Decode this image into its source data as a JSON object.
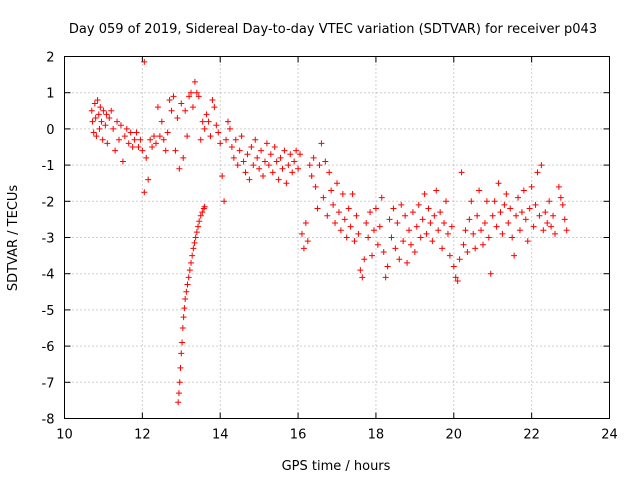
{
  "chart_data": {
    "type": "scatter",
    "title": "Day 059 of 2019, Sidereal Day-to-day VTEC variation (SDTVAR) for receiver p043",
    "xlabel": "GPS time / hours",
    "ylabel": "SDTVAR / TECUs",
    "xlim": [
      10,
      24
    ],
    "ylim": [
      -8,
      2
    ],
    "xticks": [
      "10",
      "12",
      "14",
      "16",
      "18",
      "20",
      "22",
      "24"
    ],
    "yticks": [
      "2",
      "1",
      "0",
      "-1",
      "-2",
      "-3",
      "-4",
      "-5",
      "-6",
      "-7",
      "-8"
    ],
    "grid": true,
    "marker": "plus",
    "color": "#ff0000",
    "series": [
      {
        "name": "SDTVAR",
        "points": [
          [
            10.7,
            0.5
          ],
          [
            10.72,
            0.2
          ],
          [
            10.75,
            -0.1
          ],
          [
            10.78,
            0.7
          ],
          [
            10.8,
            0.3
          ],
          [
            10.82,
            -0.2
          ],
          [
            10.85,
            0.8
          ],
          [
            10.88,
            0.4
          ],
          [
            10.9,
            0.0
          ],
          [
            10.92,
            0.6
          ],
          [
            10.95,
            0.2
          ],
          [
            10.98,
            -0.3
          ],
          [
            11.0,
            0.5
          ],
          [
            11.05,
            0.1
          ],
          [
            11.08,
            0.4
          ],
          [
            11.1,
            -0.4
          ],
          [
            11.15,
            0.3
          ],
          [
            11.2,
            0.5
          ],
          [
            11.25,
            0.0
          ],
          [
            11.3,
            -0.6
          ],
          [
            11.35,
            0.2
          ],
          [
            11.4,
            -0.3
          ],
          [
            11.45,
            0.1
          ],
          [
            11.5,
            -0.9
          ],
          [
            11.55,
            -0.2
          ],
          [
            11.6,
            0.0
          ],
          [
            11.65,
            -0.4
          ],
          [
            11.7,
            -0.1
          ],
          [
            11.75,
            -0.5
          ],
          [
            11.8,
            -0.3
          ],
          [
            11.85,
            -0.1
          ],
          [
            11.9,
            -0.5
          ],
          [
            11.95,
            -0.3
          ],
          [
            12.0,
            -0.6
          ],
          [
            12.05,
            1.85
          ],
          [
            12.05,
            -1.75
          ],
          [
            12.1,
            -0.8
          ],
          [
            12.15,
            -1.4
          ],
          [
            12.2,
            -0.3
          ],
          [
            12.25,
            -0.5
          ],
          [
            12.3,
            -0.2
          ],
          [
            12.35,
            -0.4
          ],
          [
            12.4,
            0.6
          ],
          [
            12.45,
            -0.2
          ],
          [
            12.5,
            0.2
          ],
          [
            12.55,
            -0.3
          ],
          [
            12.6,
            -0.6
          ],
          [
            12.65,
            -0.1
          ],
          [
            12.7,
            0.8
          ],
          [
            12.75,
            0.5
          ],
          [
            12.8,
            0.9
          ],
          [
            12.85,
            -0.6
          ],
          [
            12.9,
            0.3
          ],
          [
            12.95,
            -1.1
          ],
          [
            13.0,
            0.7
          ],
          [
            13.05,
            -0.8
          ],
          [
            13.1,
            0.5
          ],
          [
            13.15,
            -0.2
          ],
          [
            13.2,
            0.9
          ],
          [
            13.25,
            1.0
          ],
          [
            13.3,
            0.6
          ],
          [
            13.35,
            1.3
          ],
          [
            13.4,
            1.0
          ],
          [
            13.45,
            0.9
          ],
          [
            13.5,
            -0.3
          ],
          [
            13.55,
            0.2
          ],
          [
            13.6,
            0.0
          ],
          [
            13.65,
            0.4
          ],
          [
            13.7,
            0.2
          ],
          [
            13.75,
            -0.2
          ],
          [
            13.8,
            0.8
          ],
          [
            13.85,
            0.6
          ],
          [
            13.9,
            0.1
          ],
          [
            13.95,
            -0.1
          ],
          [
            14.0,
            -0.4
          ],
          [
            14.05,
            -1.3
          ],
          [
            14.1,
            -2.0
          ],
          [
            14.15,
            -0.3
          ],
          [
            14.2,
            0.2
          ],
          [
            14.25,
            0.0
          ],
          [
            14.3,
            -0.5
          ],
          [
            14.35,
            -0.8
          ],
          [
            14.4,
            -0.3
          ],
          [
            14.45,
            -1.0
          ],
          [
            14.5,
            -0.6
          ],
          [
            14.55,
            -0.2
          ],
          [
            14.6,
            -0.9
          ],
          [
            14.65,
            -1.2
          ],
          [
            14.7,
            -0.7
          ],
          [
            14.75,
            -1.4
          ],
          [
            14.8,
            -0.5
          ],
          [
            14.85,
            -1.0
          ],
          [
            14.9,
            -0.3
          ],
          [
            14.95,
            -0.8
          ],
          [
            15.0,
            -1.1
          ],
          [
            15.05,
            -0.6
          ],
          [
            15.1,
            -1.3
          ],
          [
            15.15,
            -0.9
          ],
          [
            15.2,
            -0.4
          ],
          [
            15.25,
            -1.0
          ],
          [
            15.3,
            -0.7
          ],
          [
            15.35,
            -1.2
          ],
          [
            15.4,
            -0.5
          ],
          [
            15.45,
            -0.9
          ],
          [
            15.5,
            -1.4
          ],
          [
            15.55,
            -0.8
          ],
          [
            15.6,
            -1.1
          ],
          [
            15.65,
            -0.6
          ],
          [
            15.7,
            -1.5
          ],
          [
            15.75,
            -1.0
          ],
          [
            15.8,
            -0.7
          ],
          [
            15.85,
            -1.2
          ],
          [
            15.9,
            -0.9
          ],
          [
            15.95,
            -0.6
          ],
          [
            16.0,
            -1.1
          ],
          [
            16.05,
            -0.7
          ],
          [
            16.1,
            -2.9
          ],
          [
            16.15,
            -3.3
          ],
          [
            16.2,
            -2.6
          ],
          [
            16.25,
            -3.1
          ],
          [
            16.3,
            -1.0
          ],
          [
            16.35,
            -1.3
          ],
          [
            16.4,
            -0.8
          ],
          [
            16.45,
            -1.6
          ],
          [
            16.5,
            -2.2
          ],
          [
            16.55,
            -1.0
          ],
          [
            16.6,
            -0.4
          ],
          [
            16.65,
            -1.9
          ],
          [
            16.7,
            -0.9
          ],
          [
            16.75,
            -2.4
          ],
          [
            16.8,
            -1.2
          ],
          [
            16.85,
            -1.7
          ],
          [
            16.9,
            -2.1
          ],
          [
            16.95,
            -2.6
          ],
          [
            17.0,
            -1.5
          ],
          [
            17.05,
            -2.3
          ],
          [
            17.1,
            -2.8
          ],
          [
            17.15,
            -1.8
          ],
          [
            17.2,
            -2.5
          ],
          [
            17.25,
            -3.0
          ],
          [
            17.3,
            -2.2
          ],
          [
            17.35,
            -2.7
          ],
          [
            17.4,
            -1.8
          ],
          [
            17.45,
            -3.1
          ],
          [
            17.5,
            -2.4
          ],
          [
            17.55,
            -2.9
          ],
          [
            17.6,
            -3.9
          ],
          [
            17.65,
            -4.1
          ],
          [
            17.7,
            -3.6
          ],
          [
            17.75,
            -2.6
          ],
          [
            17.8,
            -3.0
          ],
          [
            17.85,
            -2.3
          ],
          [
            17.9,
            -3.5
          ],
          [
            17.95,
            -2.8
          ],
          [
            18.0,
            -2.2
          ],
          [
            18.05,
            -3.2
          ],
          [
            18.1,
            -2.7
          ],
          [
            18.15,
            -1.9
          ],
          [
            18.2,
            -3.4
          ],
          [
            18.25,
            -4.1
          ],
          [
            18.3,
            -3.8
          ],
          [
            18.35,
            -2.5
          ],
          [
            18.4,
            -3.0
          ],
          [
            18.45,
            -2.2
          ],
          [
            18.5,
            -3.3
          ],
          [
            18.55,
            -2.6
          ],
          [
            18.6,
            -3.6
          ],
          [
            18.65,
            -2.1
          ],
          [
            18.7,
            -3.1
          ],
          [
            18.75,
            -2.4
          ],
          [
            18.8,
            -3.7
          ],
          [
            18.85,
            -2.8
          ],
          [
            18.9,
            -3.2
          ],
          [
            18.95,
            -2.3
          ],
          [
            19.0,
            -3.4
          ],
          [
            19.05,
            -2.7
          ],
          [
            19.1,
            -2.1
          ],
          [
            19.15,
            -3.0
          ],
          [
            19.2,
            -2.5
          ],
          [
            19.25,
            -1.8
          ],
          [
            19.3,
            -2.9
          ],
          [
            19.35,
            -2.2
          ],
          [
            19.4,
            -2.6
          ],
          [
            19.45,
            -3.1
          ],
          [
            19.5,
            -2.4
          ],
          [
            19.55,
            -1.7
          ],
          [
            19.6,
            -2.8
          ],
          [
            19.65,
            -2.3
          ],
          [
            19.7,
            -3.3
          ],
          [
            19.75,
            -2.6
          ],
          [
            19.8,
            -2.0
          ],
          [
            19.85,
            -2.9
          ],
          [
            19.9,
            -3.5
          ],
          [
            19.95,
            -2.7
          ],
          [
            20.0,
            -3.8
          ],
          [
            20.05,
            -4.1
          ],
          [
            20.1,
            -4.2
          ],
          [
            20.15,
            -3.6
          ],
          [
            20.2,
            -1.2
          ],
          [
            20.25,
            -3.2
          ],
          [
            20.3,
            -2.8
          ],
          [
            20.35,
            -3.4
          ],
          [
            20.4,
            -2.5
          ],
          [
            20.45,
            -2.0
          ],
          [
            20.5,
            -2.9
          ],
          [
            20.55,
            -3.3
          ],
          [
            20.6,
            -2.4
          ],
          [
            20.65,
            -1.7
          ],
          [
            20.7,
            -2.8
          ],
          [
            20.75,
            -3.2
          ],
          [
            20.8,
            -2.6
          ],
          [
            20.85,
            -2.0
          ],
          [
            20.9,
            -3.0
          ],
          [
            20.95,
            -4.0
          ],
          [
            21.0,
            -2.4
          ],
          [
            21.05,
            -2.0
          ],
          [
            21.1,
            -2.7
          ],
          [
            21.15,
            -1.5
          ],
          [
            21.2,
            -2.3
          ],
          [
            21.25,
            -2.9
          ],
          [
            21.3,
            -2.1
          ],
          [
            21.35,
            -1.8
          ],
          [
            21.4,
            -2.6
          ],
          [
            21.45,
            -2.2
          ],
          [
            21.5,
            -3.0
          ],
          [
            21.55,
            -3.5
          ],
          [
            21.6,
            -2.4
          ],
          [
            21.65,
            -1.9
          ],
          [
            21.7,
            -2.8
          ],
          [
            21.75,
            -2.3
          ],
          [
            21.8,
            -1.7
          ],
          [
            21.85,
            -2.5
          ],
          [
            21.9,
            -3.1
          ],
          [
            21.95,
            -2.2
          ],
          [
            22.0,
            -1.6
          ],
          [
            22.05,
            -2.7
          ],
          [
            22.1,
            -2.1
          ],
          [
            22.15,
            -1.2
          ],
          [
            22.2,
            -2.4
          ],
          [
            22.25,
            -1.0
          ],
          [
            22.3,
            -2.8
          ],
          [
            22.35,
            -2.3
          ],
          [
            22.4,
            -2.6
          ],
          [
            22.45,
            -2.0
          ],
          [
            22.5,
            -2.7
          ],
          [
            22.55,
            -2.4
          ],
          [
            22.6,
            -2.9
          ],
          [
            22.7,
            -1.6
          ],
          [
            22.75,
            -1.9
          ],
          [
            22.8,
            -2.1
          ],
          [
            22.85,
            -2.5
          ],
          [
            22.9,
            -2.8
          ],
          [
            12.92,
            -7.55
          ],
          [
            12.94,
            -7.3
          ],
          [
            12.96,
            -7.0
          ],
          [
            12.98,
            -6.6
          ],
          [
            13.0,
            -6.2
          ],
          [
            13.02,
            -5.9
          ],
          [
            13.04,
            -5.5
          ],
          [
            13.06,
            -5.2
          ],
          [
            13.08,
            -4.95
          ],
          [
            13.1,
            -4.7
          ],
          [
            13.13,
            -4.5
          ],
          [
            13.16,
            -4.3
          ],
          [
            13.19,
            -4.1
          ],
          [
            13.22,
            -3.9
          ],
          [
            13.25,
            -3.7
          ],
          [
            13.28,
            -3.5
          ],
          [
            13.31,
            -3.3
          ],
          [
            13.34,
            -3.15
          ],
          [
            13.37,
            -3.0
          ],
          [
            13.4,
            -2.85
          ],
          [
            13.43,
            -2.7
          ],
          [
            13.46,
            -2.55
          ],
          [
            13.5,
            -2.4
          ],
          [
            13.54,
            -2.3
          ],
          [
            13.58,
            -2.2
          ],
          [
            13.6,
            -2.15
          ]
        ]
      }
    ]
  }
}
